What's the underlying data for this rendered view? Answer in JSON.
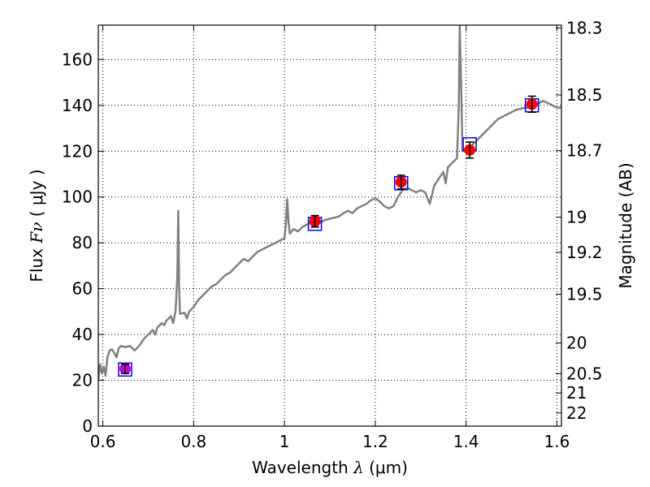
{
  "chart_data": {
    "type": "scatter",
    "xlabel_prefix": "Wavelength",
    "xlabel_symbol": "λ",
    "xlabel_unit": "(μm)",
    "ylabel_prefix": "Flux",
    "ylabel_symbol": "Fν",
    "ylabel_unit": "( μJy )",
    "y2label": "Magnitude (AB)",
    "xlim": [
      0.59,
      1.61
    ],
    "ylim": [
      0,
      175
    ],
    "grid": true,
    "x_ticks": [
      "0.6",
      "0.8",
      "1",
      "1.2",
      "1.4",
      "1.6"
    ],
    "x_tick_values": [
      0.6,
      0.8,
      1.0,
      1.2,
      1.4,
      1.6
    ],
    "y_ticks": [
      "0",
      "20",
      "40",
      "60",
      "80",
      "100",
      "120",
      "140",
      "160"
    ],
    "y_tick_values": [
      0,
      20,
      40,
      60,
      80,
      100,
      120,
      140,
      160
    ],
    "mag_ticks": [
      "18.3",
      "18.5",
      "18.7",
      "19",
      "19.2",
      "19.5",
      "20",
      "20.5",
      "21",
      "22"
    ],
    "mag_tick_values": [
      18.3,
      18.5,
      18.7,
      19.0,
      19.2,
      19.5,
      20.0,
      20.5,
      21.0,
      22.0
    ],
    "model_points": [
      {
        "x": 0.649,
        "y": 24.7
      },
      {
        "x": 1.067,
        "y": 88.3
      },
      {
        "x": 1.257,
        "y": 106.0
      },
      {
        "x": 1.408,
        "y": 123.0
      },
      {
        "x": 1.545,
        "y": 140.0
      }
    ],
    "observed_points": [
      {
        "x": 0.649,
        "y": 25.0,
        "err": 2.0,
        "color": "#cc00cc"
      },
      {
        "x": 1.067,
        "y": 89.4,
        "err": 2.5,
        "color": "#ff0000"
      },
      {
        "x": 1.257,
        "y": 106.5,
        "err": 3.0,
        "color": "#ff0000"
      },
      {
        "x": 1.408,
        "y": 120.5,
        "err": 3.5,
        "color": "#ff0000"
      },
      {
        "x": 1.545,
        "y": 140.5,
        "err": 3.5,
        "color": "#ff0000"
      }
    ],
    "spectrum": [
      [
        0.59,
        20
      ],
      [
        0.594,
        27
      ],
      [
        0.598,
        23
      ],
      [
        0.602,
        26
      ],
      [
        0.606,
        22
      ],
      [
        0.61,
        30
      ],
      [
        0.615,
        33
      ],
      [
        0.62,
        33.5
      ],
      [
        0.625,
        32
      ],
      [
        0.63,
        30
      ],
      [
        0.635,
        34
      ],
      [
        0.64,
        35
      ],
      [
        0.65,
        34.5
      ],
      [
        0.66,
        35
      ],
      [
        0.67,
        33
      ],
      [
        0.68,
        35
      ],
      [
        0.69,
        38
      ],
      [
        0.7,
        40
      ],
      [
        0.71,
        42
      ],
      [
        0.715,
        40
      ],
      [
        0.72,
        43
      ],
      [
        0.73,
        45
      ],
      [
        0.735,
        44
      ],
      [
        0.74,
        46
      ],
      [
        0.75,
        48
      ],
      [
        0.755,
        45
      ],
      [
        0.76,
        50
      ],
      [
        0.764,
        65
      ],
      [
        0.766,
        94
      ],
      [
        0.768,
        60
      ],
      [
        0.77,
        49
      ],
      [
        0.78,
        49.5
      ],
      [
        0.785,
        47
      ],
      [
        0.79,
        50
      ],
      [
        0.8,
        52
      ],
      [
        0.81,
        55
      ],
      [
        0.82,
        57
      ],
      [
        0.83,
        59
      ],
      [
        0.84,
        61
      ],
      [
        0.85,
        62
      ],
      [
        0.86,
        64
      ],
      [
        0.87,
        66
      ],
      [
        0.88,
        67
      ],
      [
        0.89,
        69
      ],
      [
        0.9,
        71
      ],
      [
        0.91,
        73
      ],
      [
        0.92,
        72
      ],
      [
        0.93,
        74
      ],
      [
        0.94,
        76
      ],
      [
        0.95,
        77
      ],
      [
        0.96,
        78
      ],
      [
        0.97,
        79
      ],
      [
        0.98,
        80
      ],
      [
        0.99,
        81
      ],
      [
        1.0,
        82
      ],
      [
        1.003,
        88
      ],
      [
        1.006,
        99
      ],
      [
        1.009,
        89
      ],
      [
        1.012,
        84
      ],
      [
        1.02,
        86
      ],
      [
        1.03,
        85
      ],
      [
        1.04,
        87
      ],
      [
        1.05,
        88
      ],
      [
        1.06,
        89
      ],
      [
        1.07,
        88
      ],
      [
        1.08,
        89
      ],
      [
        1.09,
        90
      ],
      [
        1.1,
        90.5
      ],
      [
        1.11,
        91
      ],
      [
        1.12,
        91.5
      ],
      [
        1.13,
        93
      ],
      [
        1.14,
        94
      ],
      [
        1.15,
        93
      ],
      [
        1.16,
        95
      ],
      [
        1.17,
        96
      ],
      [
        1.18,
        97
      ],
      [
        1.19,
        98.5
      ],
      [
        1.2,
        99.5
      ],
      [
        1.21,
        98
      ],
      [
        1.22,
        96
      ],
      [
        1.23,
        95
      ],
      [
        1.24,
        96
      ],
      [
        1.25,
        100
      ],
      [
        1.26,
        103
      ],
      [
        1.27,
        104
      ],
      [
        1.28,
        103
      ],
      [
        1.29,
        102
      ],
      [
        1.3,
        103
      ],
      [
        1.31,
        102
      ],
      [
        1.32,
        97
      ],
      [
        1.325,
        101
      ],
      [
        1.33,
        105
      ],
      [
        1.34,
        108
      ],
      [
        1.35,
        111
      ],
      [
        1.355,
        106
      ],
      [
        1.36,
        113
      ],
      [
        1.37,
        115
      ],
      [
        1.38,
        117
      ],
      [
        1.384,
        140
      ],
      [
        1.386,
        175
      ],
      [
        1.389,
        150
      ],
      [
        1.392,
        120
      ],
      [
        1.4,
        121
      ],
      [
        1.41,
        122
      ],
      [
        1.42,
        124
      ],
      [
        1.43,
        126
      ],
      [
        1.44,
        128
      ],
      [
        1.45,
        130
      ],
      [
        1.46,
        132
      ],
      [
        1.47,
        134
      ],
      [
        1.48,
        135
      ],
      [
        1.49,
        136
      ],
      [
        1.5,
        137
      ],
      [
        1.51,
        138
      ],
      [
        1.52,
        138.5
      ],
      [
        1.53,
        139
      ],
      [
        1.54,
        139
      ],
      [
        1.55,
        140
      ],
      [
        1.56,
        141
      ],
      [
        1.57,
        142
      ],
      [
        1.58,
        141
      ],
      [
        1.59,
        140
      ],
      [
        1.6,
        139
      ],
      [
        1.61,
        139
      ]
    ],
    "colors": {
      "spectrum": "#808080",
      "model_box": "#0000ff",
      "errorbar": "#000000",
      "grid": "#000000"
    }
  }
}
